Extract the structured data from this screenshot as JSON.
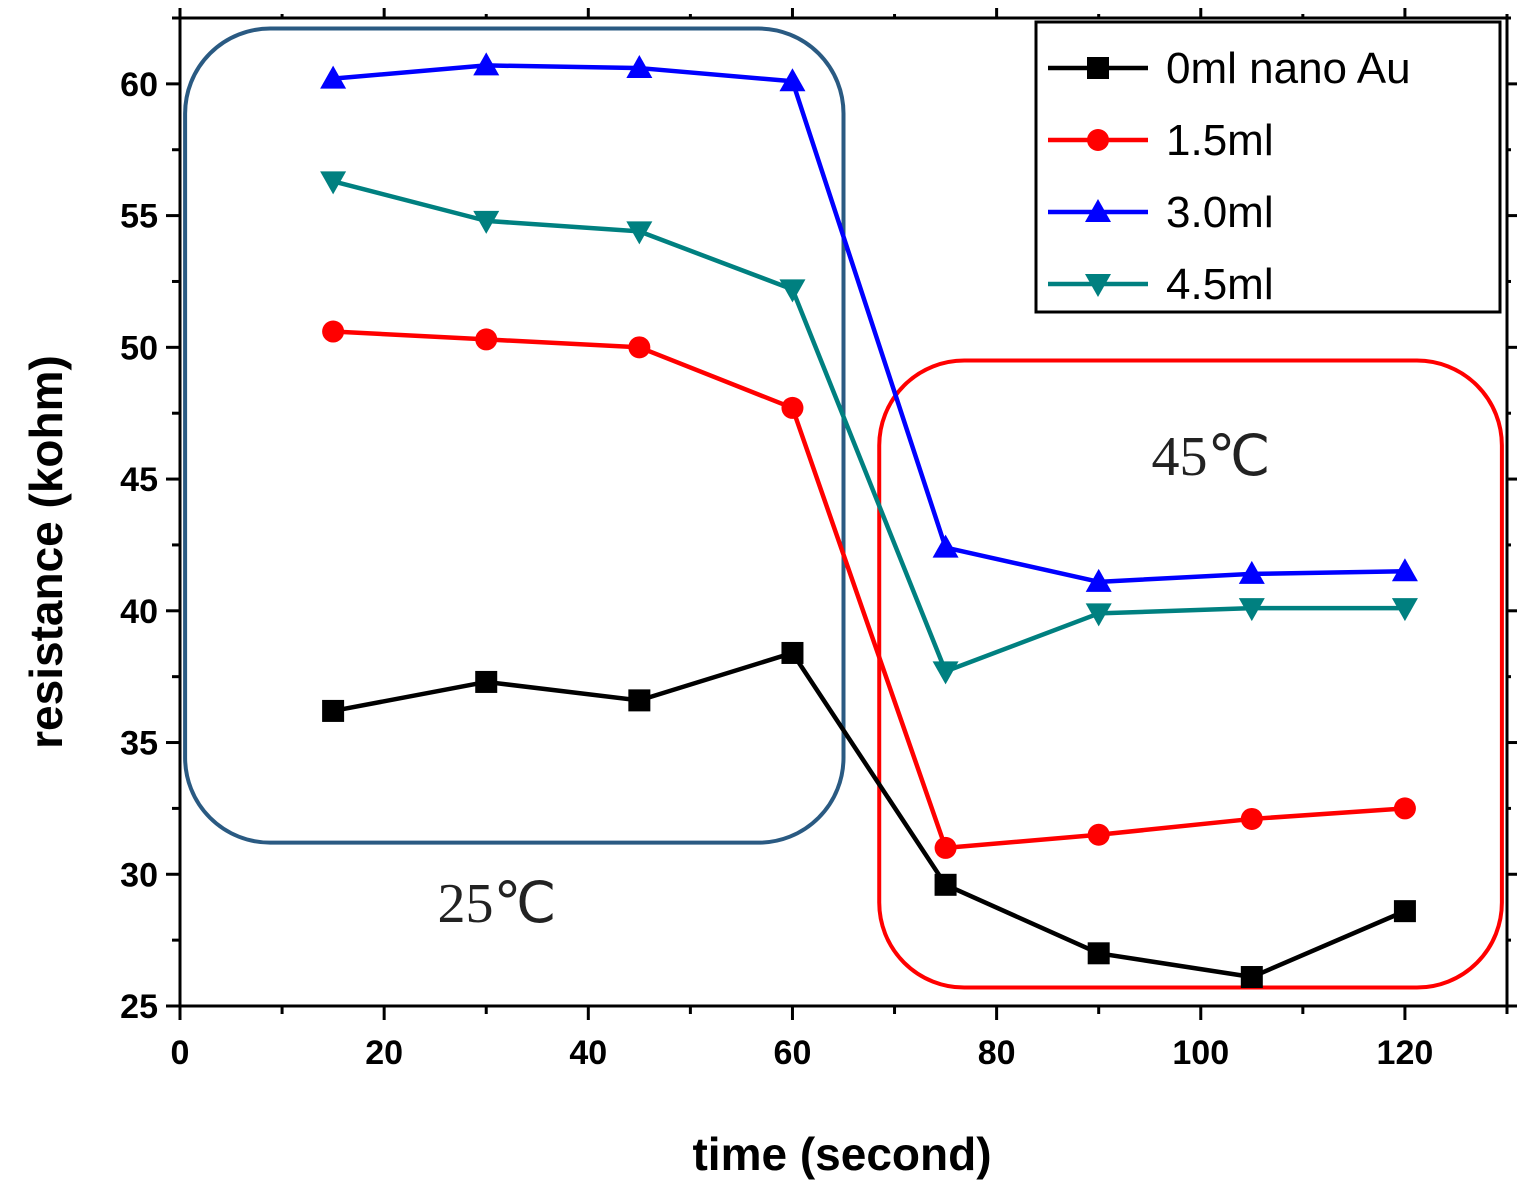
{
  "chart_data": {
    "type": "line",
    "title": "",
    "xlabel": "time (second)",
    "ylabel": "resistance (kohm)",
    "xlim": [
      0,
      130
    ],
    "ylim": [
      25,
      62.5
    ],
    "x_ticks": [
      0,
      20,
      40,
      60,
      80,
      100,
      120
    ],
    "y_ticks": [
      25,
      30,
      35,
      40,
      45,
      50,
      55,
      60
    ],
    "x": [
      15,
      30,
      45,
      60,
      75,
      90,
      105,
      120
    ],
    "series": [
      {
        "name": "0ml nano Au",
        "color": "#000000",
        "marker": "square",
        "values": [
          36.2,
          37.3,
          36.6,
          38.4,
          29.6,
          27.0,
          26.1,
          28.6
        ]
      },
      {
        "name": "1.5ml",
        "color": "#ff0000",
        "marker": "circle",
        "values": [
          50.6,
          50.3,
          50.0,
          47.7,
          31.0,
          31.5,
          32.1,
          32.5
        ]
      },
      {
        "name": "3.0ml",
        "color": "#0000ff",
        "marker": "triangle-up",
        "values": [
          60.2,
          60.7,
          60.6,
          60.1,
          42.4,
          41.1,
          41.4,
          41.5
        ]
      },
      {
        "name": "4.5ml",
        "color": "#008080",
        "marker": "triangle-down",
        "values": [
          56.3,
          54.8,
          54.4,
          52.2,
          37.7,
          39.9,
          40.1,
          40.1
        ]
      }
    ],
    "annotations": [
      {
        "text": "25℃",
        "color": "#2a5a82",
        "region_x": [
          0.5,
          65
        ],
        "region_y": [
          31.2,
          62.1
        ]
      },
      {
        "text": "45℃",
        "color": "#ff0000",
        "region_x": [
          68.5,
          129.5
        ],
        "region_y": [
          25.7,
          49.5
        ]
      }
    ],
    "legend_position": "top-right"
  }
}
